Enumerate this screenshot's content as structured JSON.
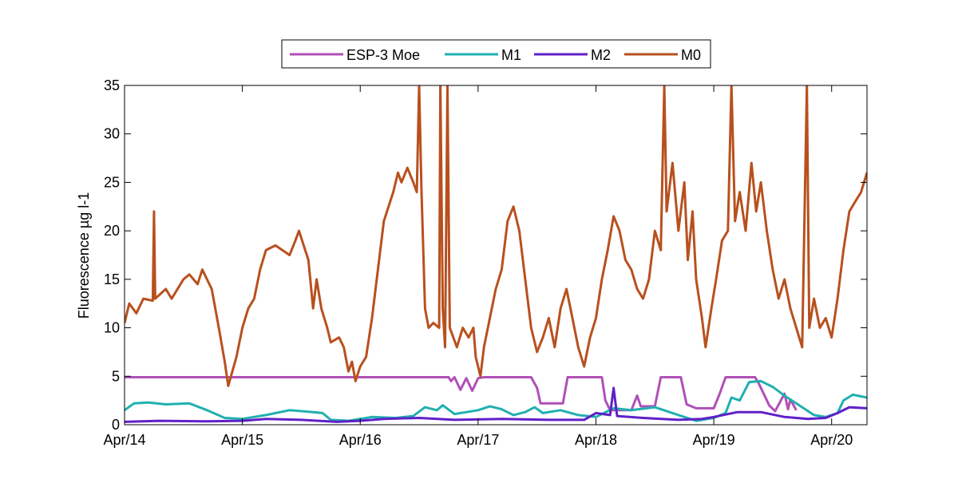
{
  "chart_data": {
    "type": "line",
    "title": "",
    "xlabel": "",
    "ylabel": "Fluorescence µg l-1",
    "xlim": [
      0,
      6.3
    ],
    "ylim": [
      0,
      35
    ],
    "x_ticks": [
      {
        "value": 0,
        "label": "Apr/14"
      },
      {
        "value": 1,
        "label": "Apr/15"
      },
      {
        "value": 2,
        "label": "Apr/16"
      },
      {
        "value": 3,
        "label": "Apr/17"
      },
      {
        "value": 4,
        "label": "Apr/18"
      },
      {
        "value": 5,
        "label": "Apr/19"
      },
      {
        "value": 6,
        "label": "Apr/20"
      }
    ],
    "y_ticks": [
      0,
      5,
      10,
      15,
      20,
      25,
      30,
      35
    ],
    "grid": false,
    "legend_position": "top-center",
    "series": [
      {
        "name": "ESP-3 Moe",
        "color": "#b050b8",
        "points": [
          [
            0,
            4.9
          ],
          [
            2.75,
            4.9
          ],
          [
            2.77,
            4.5
          ],
          [
            2.8,
            4.9
          ],
          [
            2.85,
            3.6
          ],
          [
            2.9,
            4.8
          ],
          [
            2.95,
            3.5
          ],
          [
            3.0,
            4.8
          ],
          [
            3.05,
            4.9
          ],
          [
            3.45,
            4.9
          ],
          [
            3.5,
            3.8
          ],
          [
            3.53,
            2.2
          ],
          [
            3.72,
            2.2
          ],
          [
            3.76,
            4.9
          ],
          [
            4.05,
            4.9
          ],
          [
            4.08,
            2.5
          ],
          [
            4.12,
            1.5
          ],
          [
            4.3,
            1.5
          ],
          [
            4.35,
            3.0
          ],
          [
            4.38,
            1.9
          ],
          [
            4.5,
            1.9
          ],
          [
            4.55,
            4.9
          ],
          [
            4.72,
            4.9
          ],
          [
            4.77,
            2.1
          ],
          [
            4.85,
            1.7
          ],
          [
            5.0,
            1.7
          ],
          [
            5.05,
            3.2
          ],
          [
            5.1,
            4.9
          ],
          [
            5.35,
            4.9
          ],
          [
            5.38,
            4.3
          ],
          [
            5.47,
            2.0
          ],
          [
            5.52,
            1.4
          ],
          [
            5.6,
            3.2
          ],
          [
            5.63,
            1.6
          ],
          [
            5.65,
            2.6
          ],
          [
            5.7,
            1.5
          ]
        ]
      },
      {
        "name": "M1",
        "color": "#20b0b0",
        "points": [
          [
            0,
            1.5
          ],
          [
            0.08,
            2.2
          ],
          [
            0.2,
            2.3
          ],
          [
            0.35,
            2.1
          ],
          [
            0.55,
            2.2
          ],
          [
            0.7,
            1.5
          ],
          [
            0.85,
            0.7
          ],
          [
            1.0,
            0.6
          ],
          [
            1.2,
            1.0
          ],
          [
            1.4,
            1.5
          ],
          [
            1.6,
            1.3
          ],
          [
            1.68,
            1.2
          ],
          [
            1.75,
            0.5
          ],
          [
            1.9,
            0.4
          ],
          [
            2.0,
            0.6
          ],
          [
            2.1,
            0.8
          ],
          [
            2.3,
            0.7
          ],
          [
            2.45,
            0.9
          ],
          [
            2.55,
            1.8
          ],
          [
            2.65,
            1.5
          ],
          [
            2.7,
            2.0
          ],
          [
            2.8,
            1.1
          ],
          [
            3.0,
            1.5
          ],
          [
            3.1,
            1.9
          ],
          [
            3.2,
            1.6
          ],
          [
            3.3,
            1.0
          ],
          [
            3.4,
            1.3
          ],
          [
            3.48,
            1.8
          ],
          [
            3.55,
            1.2
          ],
          [
            3.7,
            1.5
          ],
          [
            3.85,
            1.0
          ],
          [
            4.0,
            0.8
          ],
          [
            4.15,
            1.7
          ],
          [
            4.3,
            1.5
          ],
          [
            4.5,
            1.8
          ],
          [
            4.65,
            1.2
          ],
          [
            4.75,
            0.8
          ],
          [
            4.85,
            0.4
          ],
          [
            5.0,
            0.7
          ],
          [
            5.1,
            1.2
          ],
          [
            5.15,
            2.8
          ],
          [
            5.22,
            2.5
          ],
          [
            5.3,
            4.4
          ],
          [
            5.4,
            4.5
          ],
          [
            5.5,
            3.9
          ],
          [
            5.6,
            3.0
          ],
          [
            5.75,
            1.8
          ],
          [
            5.85,
            1.0
          ],
          [
            5.95,
            0.8
          ],
          [
            6.05,
            1.2
          ],
          [
            6.1,
            2.5
          ],
          [
            6.18,
            3.1
          ],
          [
            6.3,
            2.8
          ]
        ]
      },
      {
        "name": "M2",
        "color": "#6020c8",
        "points": [
          [
            0,
            0.3
          ],
          [
            0.3,
            0.4
          ],
          [
            0.7,
            0.35
          ],
          [
            1.0,
            0.4
          ],
          [
            1.2,
            0.6
          ],
          [
            1.5,
            0.5
          ],
          [
            1.8,
            0.3
          ],
          [
            2.0,
            0.4
          ],
          [
            2.2,
            0.6
          ],
          [
            2.5,
            0.7
          ],
          [
            2.8,
            0.5
          ],
          [
            3.2,
            0.6
          ],
          [
            3.6,
            0.5
          ],
          [
            3.9,
            0.5
          ],
          [
            4.0,
            1.2
          ],
          [
            4.12,
            1.0
          ],
          [
            4.15,
            3.8
          ],
          [
            4.18,
            0.9
          ],
          [
            4.4,
            0.7
          ],
          [
            4.7,
            0.5
          ],
          [
            4.9,
            0.6
          ],
          [
            5.0,
            0.8
          ],
          [
            5.2,
            1.3
          ],
          [
            5.4,
            1.3
          ],
          [
            5.6,
            0.8
          ],
          [
            5.8,
            0.6
          ],
          [
            5.95,
            0.7
          ],
          [
            6.05,
            1.2
          ],
          [
            6.15,
            1.8
          ],
          [
            6.3,
            1.7
          ]
        ]
      },
      {
        "name": "M0",
        "color": "#b8501e",
        "points": [
          [
            0,
            10.5
          ],
          [
            0.04,
            12.5
          ],
          [
            0.1,
            11.5
          ],
          [
            0.16,
            13
          ],
          [
            0.24,
            12.8
          ],
          [
            0.25,
            22
          ],
          [
            0.26,
            13
          ],
          [
            0.35,
            14
          ],
          [
            0.4,
            13
          ],
          [
            0.5,
            15
          ],
          [
            0.55,
            15.5
          ],
          [
            0.62,
            14.5
          ],
          [
            0.66,
            16
          ],
          [
            0.7,
            15
          ],
          [
            0.74,
            14
          ],
          [
            0.8,
            10
          ],
          [
            0.85,
            6.5
          ],
          [
            0.88,
            4
          ],
          [
            0.95,
            7
          ],
          [
            1.0,
            10
          ],
          [
            1.05,
            12
          ],
          [
            1.1,
            13
          ],
          [
            1.15,
            16
          ],
          [
            1.2,
            18
          ],
          [
            1.28,
            18.5
          ],
          [
            1.4,
            17.5
          ],
          [
            1.45,
            19
          ],
          [
            1.48,
            20
          ],
          [
            1.52,
            18.5
          ],
          [
            1.56,
            17
          ],
          [
            1.6,
            12
          ],
          [
            1.63,
            15
          ],
          [
            1.67,
            12
          ],
          [
            1.72,
            10
          ],
          [
            1.75,
            8.5
          ],
          [
            1.82,
            9
          ],
          [
            1.86,
            8
          ],
          [
            1.9,
            5.5
          ],
          [
            1.93,
            6.5
          ],
          [
            1.96,
            4.5
          ],
          [
            2.0,
            6
          ],
          [
            2.05,
            7
          ],
          [
            2.1,
            11
          ],
          [
            2.15,
            16
          ],
          [
            2.2,
            21
          ],
          [
            2.28,
            24
          ],
          [
            2.32,
            26
          ],
          [
            2.35,
            25
          ],
          [
            2.4,
            26.5
          ],
          [
            2.45,
            25
          ],
          [
            2.48,
            24
          ],
          [
            2.5,
            35
          ],
          [
            2.52,
            24
          ],
          [
            2.55,
            12
          ],
          [
            2.58,
            10
          ],
          [
            2.62,
            10.5
          ],
          [
            2.67,
            10
          ],
          [
            2.68,
            35
          ],
          [
            2.7,
            12
          ],
          [
            2.72,
            8
          ],
          [
            2.74,
            35
          ],
          [
            2.76,
            10
          ],
          [
            2.82,
            8
          ],
          [
            2.87,
            10
          ],
          [
            2.92,
            9
          ],
          [
            2.96,
            10
          ],
          [
            2.98,
            7
          ],
          [
            3.02,
            5
          ],
          [
            3.05,
            8
          ],
          [
            3.1,
            11
          ],
          [
            3.15,
            14
          ],
          [
            3.2,
            16
          ],
          [
            3.25,
            21
          ],
          [
            3.3,
            22.5
          ],
          [
            3.35,
            20
          ],
          [
            3.4,
            15
          ],
          [
            3.45,
            10
          ],
          [
            3.5,
            7.5
          ],
          [
            3.55,
            9
          ],
          [
            3.6,
            11
          ],
          [
            3.65,
            8
          ],
          [
            3.7,
            12
          ],
          [
            3.75,
            14
          ],
          [
            3.8,
            11
          ],
          [
            3.85,
            8
          ],
          [
            3.9,
            6
          ],
          [
            3.95,
            9
          ],
          [
            4.0,
            11
          ],
          [
            4.05,
            15
          ],
          [
            4.1,
            18
          ],
          [
            4.15,
            21.5
          ],
          [
            4.2,
            20
          ],
          [
            4.25,
            17
          ],
          [
            4.3,
            16
          ],
          [
            4.35,
            14
          ],
          [
            4.4,
            13
          ],
          [
            4.45,
            15
          ],
          [
            4.5,
            20
          ],
          [
            4.55,
            18
          ],
          [
            4.58,
            35
          ],
          [
            4.6,
            22
          ],
          [
            4.65,
            27
          ],
          [
            4.7,
            20
          ],
          [
            4.75,
            25
          ],
          [
            4.78,
            17
          ],
          [
            4.82,
            22
          ],
          [
            4.85,
            15
          ],
          [
            4.9,
            11
          ],
          [
            4.93,
            8
          ],
          [
            4.98,
            12
          ],
          [
            5.02,
            15
          ],
          [
            5.07,
            19
          ],
          [
            5.12,
            20
          ],
          [
            5.15,
            35
          ],
          [
            5.18,
            21
          ],
          [
            5.22,
            24
          ],
          [
            5.27,
            20
          ],
          [
            5.32,
            27
          ],
          [
            5.36,
            22
          ],
          [
            5.4,
            25
          ],
          [
            5.45,
            20
          ],
          [
            5.5,
            16
          ],
          [
            5.55,
            13
          ],
          [
            5.6,
            15
          ],
          [
            5.65,
            12
          ],
          [
            5.7,
            10
          ],
          [
            5.75,
            8
          ],
          [
            5.79,
            35
          ],
          [
            5.81,
            10
          ],
          [
            5.85,
            13
          ],
          [
            5.9,
            10
          ],
          [
            5.95,
            11
          ],
          [
            6.0,
            9
          ],
          [
            6.05,
            13
          ],
          [
            6.1,
            18
          ],
          [
            6.15,
            22
          ],
          [
            6.2,
            23
          ],
          [
            6.25,
            24
          ],
          [
            6.3,
            26
          ]
        ]
      }
    ]
  }
}
